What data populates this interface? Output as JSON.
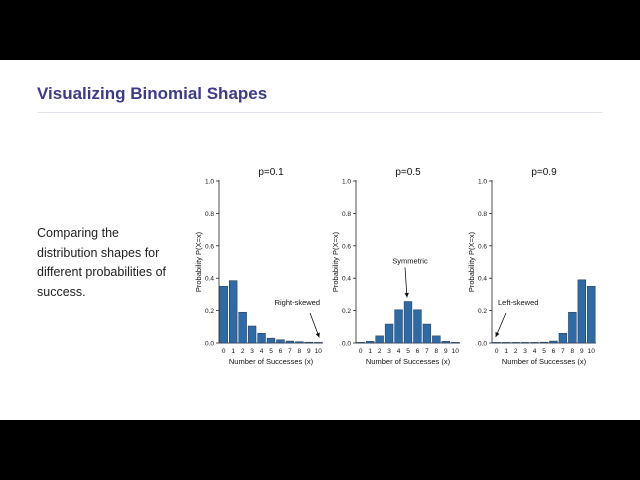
{
  "slide": {
    "title": "Visualizing Binomial Shapes",
    "description": "Comparing the distribution shapes for different probabilities of success."
  },
  "colors": {
    "title": "#3d3a8c",
    "bar": "#2e6aa6",
    "bar_stroke": "#1f3550"
  },
  "chart_data": [
    {
      "type": "bar",
      "title": "p=0.1",
      "xlabel": "Number of Successes (x)",
      "ylabel": "Probability P(X=x)",
      "categories": [
        "0",
        "1",
        "2",
        "3",
        "4",
        "5",
        "6",
        "7",
        "8",
        "9",
        "10"
      ],
      "values": [
        0.35,
        0.385,
        0.19,
        0.105,
        0.06,
        0.03,
        0.02,
        0.012,
        0.008,
        0.005,
        0.003
      ],
      "ylim": [
        0,
        1.0
      ],
      "yticks": [
        "0.0",
        "0.2",
        "0.4",
        "0.6",
        "0.8",
        "1.0"
      ],
      "annotation": {
        "text": "Right-skewed",
        "target": "10"
      }
    },
    {
      "type": "bar",
      "title": "p=0.5",
      "xlabel": "Number of Successes (x)",
      "ylabel": "Probability P(X=x)",
      "categories": [
        "0",
        "1",
        "2",
        "3",
        "4",
        "5",
        "6",
        "7",
        "8",
        "9",
        "10"
      ],
      "values": [
        0.001,
        0.01,
        0.044,
        0.117,
        0.205,
        0.256,
        0.205,
        0.117,
        0.044,
        0.01,
        0.001
      ],
      "ylim": [
        0,
        1.0
      ],
      "yticks": [
        "0.0",
        "0.2",
        "0.4",
        "0.6",
        "0.8",
        "1.0"
      ],
      "annotation": {
        "text": "Symmetric",
        "target": "5"
      }
    },
    {
      "type": "bar",
      "title": "p=0.9",
      "xlabel": "Number of Successes (x)",
      "ylabel": "Probability P(X=x)",
      "categories": [
        "0",
        "1",
        "2",
        "3",
        "4",
        "5",
        "6",
        "7",
        "8",
        "9",
        "10"
      ],
      "values": [
        0.0,
        0.0,
        0.0,
        0.0,
        0.002,
        0.005,
        0.012,
        0.06,
        0.19,
        0.39,
        0.35
      ],
      "ylim": [
        0,
        1.0
      ],
      "yticks": [
        "0.0",
        "0.2",
        "0.4",
        "0.6",
        "0.8",
        "1.0"
      ],
      "annotation": {
        "text": "Left-skewed",
        "target": "0"
      }
    }
  ]
}
